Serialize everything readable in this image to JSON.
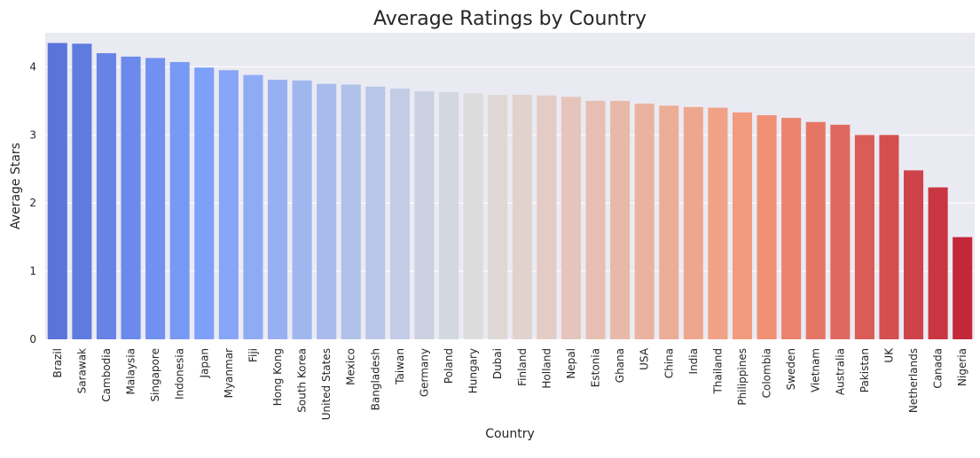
{
  "chart_data": {
    "type": "bar",
    "title": "Average Ratings by Country",
    "xlabel": "Country",
    "ylabel": "Average Stars",
    "ylim": [
      0,
      4.5
    ],
    "yticks": [
      0,
      1,
      2,
      3,
      4
    ],
    "grid": true,
    "categories": [
      "Brazil",
      "Sarawak",
      "Cambodia",
      "Malaysia",
      "Singapore",
      "Indonesia",
      "Japan",
      "Myanmar",
      "Fiji",
      "Hong Kong",
      "South Korea",
      "United States",
      "Mexico",
      "Bangladesh",
      "Taiwan",
      "Germany",
      "Poland",
      "Hungary",
      "Dubai",
      "Finland",
      "Holland",
      "Nepal",
      "Estonia",
      "Ghana",
      "USA",
      "China",
      "India",
      "Thailand",
      "Philippines",
      "Colombia",
      "Sweden",
      "Vietnam",
      "Australia",
      "Pakistan",
      "UK",
      "Netherlands",
      "Canada",
      "Nigeria"
    ],
    "values": [
      4.35,
      4.34,
      4.2,
      4.15,
      4.13,
      4.07,
      3.99,
      3.95,
      3.88,
      3.81,
      3.8,
      3.75,
      3.74,
      3.71,
      3.68,
      3.64,
      3.63,
      3.61,
      3.59,
      3.59,
      3.58,
      3.56,
      3.5,
      3.5,
      3.46,
      3.43,
      3.41,
      3.4,
      3.33,
      3.29,
      3.25,
      3.19,
      3.15,
      3.0,
      3.0,
      2.48,
      2.23,
      1.5
    ],
    "palette": "coolwarm",
    "colors": {
      "plot_background": "#eaeaf2",
      "grid": "#ffffff",
      "text": "#262626"
    }
  }
}
